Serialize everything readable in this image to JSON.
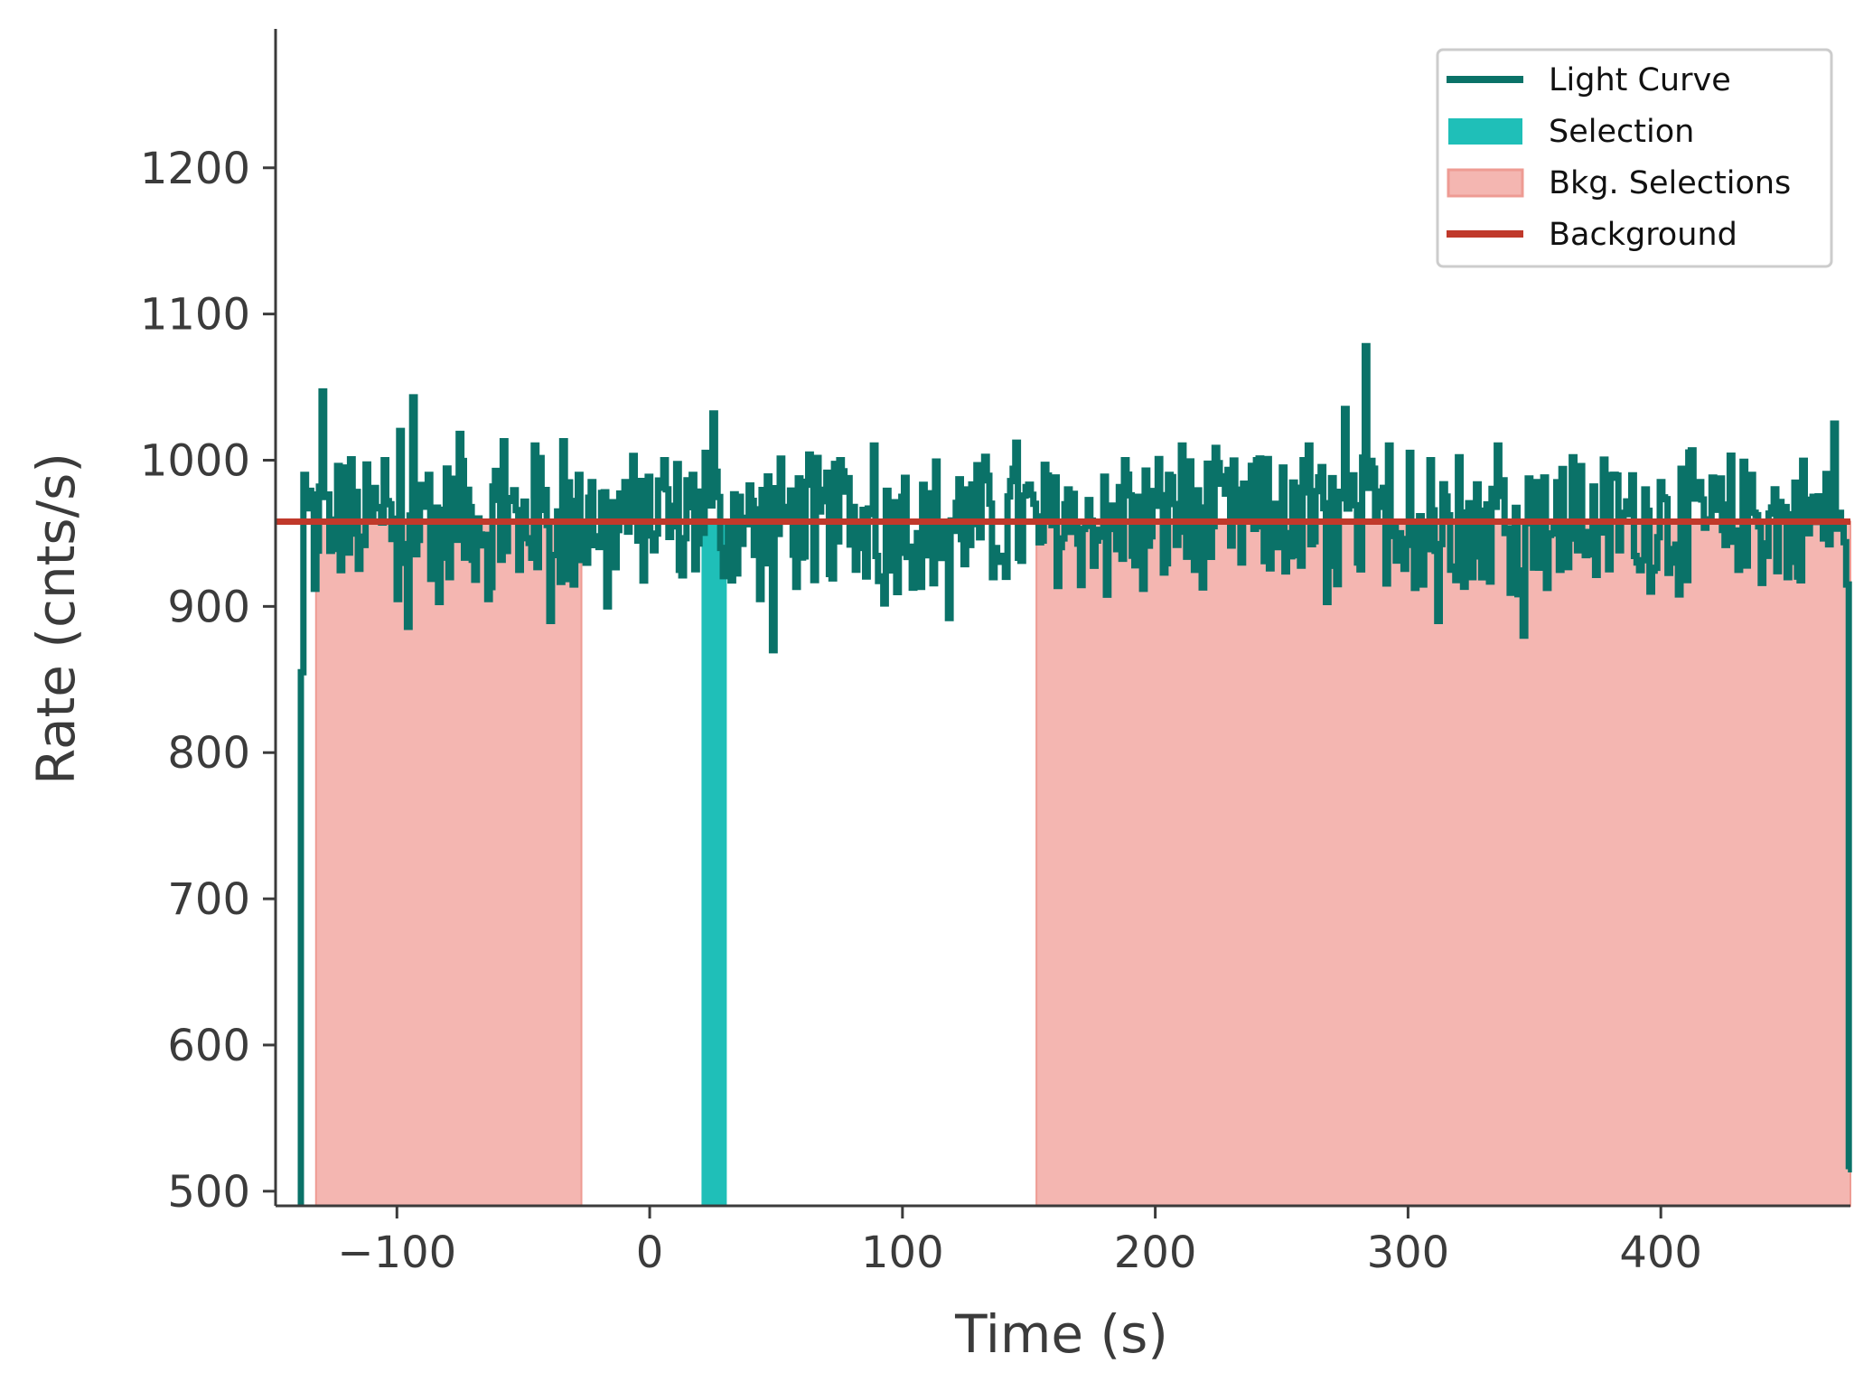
{
  "chart_data": {
    "type": "line",
    "title": "",
    "xlabel": "Time (s)",
    "ylabel": "Rate (cnts/s)",
    "xlim": [
      -148,
      475
    ],
    "ylim": [
      490,
      1295
    ],
    "x_ticks": [
      -100,
      0,
      100,
      200,
      300,
      400
    ],
    "x_tick_labels": [
      "−100",
      "0",
      "100",
      "200",
      "300",
      "400"
    ],
    "y_ticks": [
      500,
      600,
      700,
      800,
      900,
      1000,
      1100,
      1200
    ],
    "y_tick_labels": [
      "500",
      "600",
      "700",
      "800",
      "900",
      "1000",
      "1100",
      "1200"
    ],
    "grid": false,
    "legend_position": "top-right",
    "legend": [
      {
        "label": "Light Curve",
        "kind": "line",
        "color": "#0a7268"
      },
      {
        "label": "Selection",
        "kind": "patch",
        "color": "#1fbfb8"
      },
      {
        "label": "Bkg. Selections",
        "kind": "patch",
        "color": "#f4b6b1"
      },
      {
        "label": "Background",
        "kind": "line",
        "color": "#c0392b"
      }
    ],
    "colors": {
      "light_curve": "#0a7268",
      "selection": "#1fbfb8",
      "bkg_selection": "#f4b6b1",
      "bkg_selection_edge": "#ee9b93",
      "background": "#c0392b",
      "axes": "#3b3b3b"
    },
    "background_level": 958,
    "selection_interval": [
      20.5,
      30.5
    ],
    "bkg_intervals": [
      [
        -132,
        -27
      ],
      [
        153,
        475
      ]
    ],
    "light_curve": {
      "start_time": -138,
      "bin_width": 1.024,
      "anchors": [
        [
          -138,
          855
        ],
        [
          -136.5,
          990
        ],
        [
          -133,
          912
        ],
        [
          -130,
          1047
        ],
        [
          -127,
          938
        ],
        [
          -121,
          995
        ],
        [
          -113,
          942
        ],
        [
          -105,
          1000
        ],
        [
          -100,
          905
        ],
        [
          -99,
          1020
        ],
        [
          -96,
          886
        ],
        [
          -94,
          1043
        ],
        [
          -88,
          990
        ],
        [
          -84,
          903
        ],
        [
          -76,
          1018
        ],
        [
          -64,
          905
        ],
        [
          -58,
          1013
        ],
        [
          -52,
          925
        ],
        [
          -46,
          1010
        ],
        [
          -40,
          890
        ],
        [
          -35,
          1013
        ],
        [
          -30,
          915
        ],
        [
          -23,
          985
        ],
        [
          -17,
          900
        ],
        [
          -10,
          985
        ],
        [
          -5,
          945
        ],
        [
          5,
          1000
        ],
        [
          12,
          925
        ],
        [
          17,
          990
        ],
        [
          22,
          1005
        ],
        [
          25,
          1032
        ],
        [
          28,
          940
        ],
        [
          35,
          975
        ],
        [
          43,
          905
        ],
        [
          48,
          870
        ],
        [
          55,
          968
        ],
        [
          65,
          918
        ],
        [
          75,
          1000
        ],
        [
          82,
          940
        ],
        [
          88,
          1010
        ],
        [
          92,
          902
        ],
        [
          100,
          975
        ],
        [
          110,
          935
        ],
        [
          118,
          892
        ],
        [
          125,
          980
        ],
        [
          135,
          920
        ],
        [
          145,
          1012
        ],
        [
          155,
          945
        ],
        [
          165,
          980
        ],
        [
          172,
          955
        ],
        [
          176,
          945
        ],
        [
          180,
          908
        ],
        [
          188,
          1000
        ],
        [
          195,
          912
        ],
        [
          205,
          990
        ],
        [
          210,
          1010
        ],
        [
          215,
          925
        ],
        [
          225,
          998
        ],
        [
          232,
          960
        ],
        [
          240,
          1000
        ],
        [
          245,
          926
        ],
        [
          250,
          995
        ],
        [
          255,
          935
        ],
        [
          260,
          1010
        ],
        [
          268,
          903
        ],
        [
          275,
          1035
        ],
        [
          280,
          930
        ],
        [
          283,
          1078
        ],
        [
          287,
          960
        ],
        [
          292,
          1010
        ],
        [
          296,
          950
        ],
        [
          300,
          1005
        ],
        [
          305,
          915
        ],
        [
          308,
          1000
        ],
        [
          312,
          890
        ],
        [
          320,
          1002
        ],
        [
          325,
          920
        ],
        [
          335,
          1010
        ],
        [
          345,
          880
        ],
        [
          350,
          985
        ],
        [
          360,
          925
        ],
        [
          365,
          1002
        ],
        [
          375,
          958
        ],
        [
          380,
          988
        ],
        [
          390,
          930
        ],
        [
          400,
          985
        ],
        [
          410,
          918
        ],
        [
          415,
          985
        ],
        [
          425,
          942
        ],
        [
          435,
          990
        ],
        [
          450,
          920
        ],
        [
          460,
          975
        ],
        [
          468,
          1025
        ],
        [
          471,
          955
        ],
        [
          473,
          915
        ],
        [
          474,
          515
        ]
      ]
    }
  }
}
